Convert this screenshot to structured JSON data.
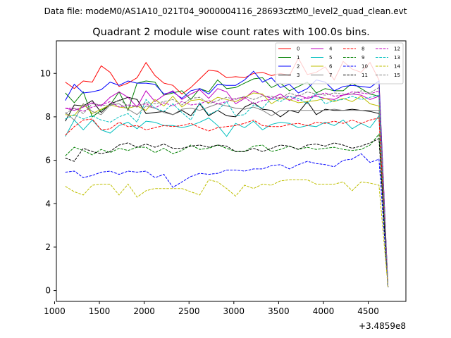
{
  "figure": {
    "suptitle": "Data file: modeM0/AS1A10_021T04_9000004116_28693cztM0_level2_quad_clean.evt"
  },
  "chart_data": {
    "type": "line",
    "title": "Quadrant 2 module wise count rates with 100.0s bins.",
    "xlabel": "",
    "ylabel": "",
    "x_offset_label": "+3.4859e8",
    "xlim": [
      1020,
      4920
    ],
    "ylim": [
      -0.5,
      11.5
    ],
    "xticks": [
      1000,
      1500,
      2000,
      2500,
      3000,
      3500,
      4000,
      4500
    ],
    "yticks": [
      0,
      2,
      4,
      6,
      8,
      10
    ],
    "legend_position": "top-right",
    "x": [
      1120,
      1220,
      1320,
      1420,
      1520,
      1620,
      1720,
      1820,
      1920,
      2020,
      2120,
      2220,
      2320,
      2420,
      2520,
      2620,
      2720,
      2820,
      2920,
      3020,
      3120,
      3220,
      3320,
      3420,
      3520,
      3620,
      3720,
      3820,
      3920,
      4020,
      4120,
      4220,
      4320,
      4420,
      4520,
      4620,
      4720
    ],
    "series": [
      {
        "name": "0",
        "color": "#ff0000",
        "dash": "solid",
        "values": [
          9.6,
          9.3,
          9.65,
          9.6,
          10.35,
          10.05,
          9.4,
          9.55,
          9.8,
          10.5,
          9.9,
          9.55,
          9.45,
          9.05,
          9.35,
          9.75,
          10.15,
          10.1,
          9.8,
          9.85,
          9.8,
          10.0,
          10.05,
          9.9,
          10.0,
          9.9,
          10.7,
          9.95,
          10.05,
          10.3,
          9.7,
          10.55,
          10.2,
          10.05,
          10.5,
          9.7,
          0.15
        ]
      },
      {
        "name": "1",
        "color": "#008000",
        "dash": "solid",
        "values": [
          9.1,
          8.65,
          9.15,
          8.0,
          8.3,
          8.55,
          9.15,
          8.3,
          9.55,
          9.65,
          9.6,
          9.0,
          9.1,
          9.2,
          8.8,
          9.3,
          9.15,
          9.7,
          9.3,
          9.35,
          9.55,
          9.75,
          9.8,
          9.35,
          9.55,
          9.2,
          9.4,
          9.6,
          9.1,
          9.3,
          9.2,
          9.2,
          9.55,
          9.3,
          9.05,
          8.95,
          0.15
        ]
      },
      {
        "name": "2",
        "color": "#0000ff",
        "dash": "solid",
        "values": [
          8.75,
          9.5,
          9.1,
          9.15,
          9.25,
          9.6,
          9.45,
          9.65,
          9.55,
          9.55,
          9.5,
          9.05,
          9.15,
          8.85,
          9.2,
          9.3,
          9.05,
          9.5,
          9.45,
          9.45,
          9.7,
          10.1,
          9.6,
          9.8,
          9.35,
          9.5,
          9.1,
          9.3,
          9.7,
          9.6,
          9.2,
          9.4,
          9.45,
          9.4,
          9.35,
          9.65,
          0.15
        ]
      },
      {
        "name": "3",
        "color": "#000000",
        "dash": "solid",
        "values": [
          7.8,
          8.55,
          8.5,
          8.75,
          8.2,
          8.6,
          8.75,
          8.9,
          8.8,
          8.15,
          8.2,
          8.25,
          8.1,
          8.3,
          8.05,
          8.6,
          8.05,
          8.3,
          8.05,
          8.0,
          8.45,
          8.65,
          8.35,
          8.3,
          8.0,
          8.3,
          8.2,
          8.7,
          8.1,
          8.35,
          8.3,
          8.3,
          8.35,
          8.3,
          8.25,
          8.15,
          0.15
        ]
      },
      {
        "name": "4",
        "color": "#bf00bf",
        "dash": "solid",
        "values": [
          8.4,
          8.3,
          8.45,
          8.65,
          8.5,
          8.9,
          9.15,
          8.9,
          8.45,
          9.2,
          8.7,
          9.0,
          9.2,
          8.8,
          9.05,
          9.25,
          8.85,
          9.3,
          9.15,
          8.6,
          8.85,
          9.2,
          9.0,
          8.85,
          9.05,
          8.75,
          9.0,
          8.85,
          8.95,
          8.85,
          8.8,
          9.0,
          9.05,
          9.0,
          8.8,
          8.95,
          0.15
        ]
      },
      {
        "name": "5",
        "color": "#00bfbf",
        "dash": "solid",
        "values": [
          7.1,
          7.85,
          7.4,
          7.85,
          7.4,
          7.25,
          7.6,
          7.75,
          7.45,
          7.8,
          7.75,
          7.6,
          7.6,
          7.5,
          7.6,
          7.75,
          7.95,
          7.6,
          7.1,
          7.7,
          7.5,
          7.8,
          7.4,
          7.65,
          7.75,
          7.7,
          7.5,
          7.6,
          7.55,
          7.75,
          7.6,
          7.85,
          7.45,
          7.7,
          7.5,
          8.05,
          0.15
        ]
      },
      {
        "name": "6",
        "color": "#bfbf00",
        "dash": "solid",
        "values": [
          8.1,
          8.05,
          8.6,
          8.15,
          8.35,
          8.55,
          8.45,
          8.4,
          8.5,
          8.3,
          8.8,
          8.5,
          8.95,
          8.45,
          8.75,
          8.8,
          8.65,
          8.9,
          8.8,
          8.7,
          8.9,
          9.1,
          9.05,
          8.6,
          8.85,
          8.8,
          8.65,
          8.7,
          8.75,
          8.85,
          8.7,
          8.85,
          8.7,
          8.95,
          8.6,
          8.5,
          0.15
        ]
      },
      {
        "name": "7",
        "color": "#808080",
        "dash": "solid",
        "values": [
          8.2,
          7.85,
          8.6,
          8.25,
          8.1,
          8.55,
          8.6,
          8.35,
          8.1,
          8.5,
          8.4,
          8.2,
          8.1,
          8.35,
          8.4,
          8.3,
          8.45,
          8.6,
          8.5,
          8.4,
          8.35,
          8.45,
          8.3,
          8.05,
          8.3,
          8.3,
          8.3,
          8.3,
          8.3,
          8.3,
          8.35,
          8.3,
          8.3,
          8.3,
          8.3,
          8.3,
          0.15
        ]
      },
      {
        "name": "8",
        "color": "#ff0000",
        "dash": "dashed",
        "values": [
          7.15,
          7.55,
          7.85,
          7.9,
          7.4,
          7.45,
          7.75,
          7.55,
          7.6,
          7.4,
          7.5,
          7.6,
          7.55,
          7.6,
          7.7,
          7.5,
          7.35,
          7.5,
          7.55,
          7.6,
          7.7,
          7.85,
          7.6,
          7.55,
          7.55,
          7.65,
          7.7,
          7.6,
          7.75,
          7.7,
          7.8,
          7.7,
          7.85,
          7.7,
          7.85,
          7.95,
          0.15
        ]
      },
      {
        "name": "9",
        "color": "#008000",
        "dash": "dashed",
        "values": [
          6.2,
          6.6,
          6.45,
          6.25,
          6.5,
          6.35,
          6.55,
          6.45,
          6.6,
          6.6,
          6.35,
          6.55,
          6.3,
          6.45,
          6.7,
          6.5,
          6.55,
          6.7,
          6.55,
          6.4,
          6.4,
          6.65,
          6.7,
          6.4,
          6.5,
          6.65,
          6.5,
          6.6,
          6.5,
          6.55,
          6.6,
          6.5,
          6.45,
          6.5,
          6.7,
          7.2,
          0.15
        ]
      },
      {
        "name": "10",
        "color": "#0000ff",
        "dash": "dashed",
        "values": [
          5.45,
          5.5,
          5.2,
          5.3,
          5.45,
          5.5,
          5.35,
          5.5,
          5.45,
          5.5,
          5.2,
          5.35,
          4.75,
          5.0,
          5.25,
          5.4,
          5.35,
          5.4,
          5.55,
          5.55,
          5.5,
          5.6,
          5.6,
          5.75,
          5.8,
          5.6,
          5.8,
          5.95,
          5.85,
          5.8,
          5.7,
          6.0,
          6.05,
          6.3,
          5.9,
          6.05,
          0.15
        ]
      },
      {
        "name": "11",
        "color": "#000000",
        "dash": "dashed",
        "values": [
          6.1,
          5.95,
          6.55,
          6.4,
          6.3,
          6.4,
          6.7,
          6.8,
          6.6,
          6.75,
          6.6,
          6.75,
          6.55,
          6.55,
          6.65,
          6.7,
          6.6,
          6.7,
          6.65,
          6.4,
          6.4,
          6.55,
          6.4,
          6.55,
          6.7,
          6.65,
          6.5,
          6.7,
          6.75,
          6.65,
          6.8,
          6.7,
          6.55,
          6.65,
          6.8,
          7.0,
          0.15
        ]
      },
      {
        "name": "12",
        "color": "#bf00bf",
        "dash": "dashed",
        "values": [
          8.4,
          8.4,
          8.25,
          8.45,
          8.55,
          8.7,
          8.45,
          8.55,
          8.5,
          8.6,
          8.4,
          8.65,
          8.5,
          8.7,
          8.55,
          8.6,
          8.75,
          8.6,
          8.7,
          8.85,
          8.9,
          8.6,
          8.75,
          8.8,
          8.9,
          8.95,
          8.75,
          8.9,
          9.0,
          9.1,
          8.95,
          9.0,
          9.15,
          9.1,
          9.05,
          9.2,
          0.15
        ]
      },
      {
        "name": "13",
        "color": "#00bfbf",
        "dash": "dashed",
        "values": [
          7.9,
          8.1,
          7.9,
          8.05,
          7.85,
          7.75,
          8.0,
          8.15,
          7.75,
          8.8,
          8.4,
          8.25,
          8.6,
          8.2,
          7.85,
          8.65,
          8.1,
          8.3,
          8.7,
          8.05,
          8.1,
          8.55,
          8.4,
          8.85,
          8.7,
          8.95,
          8.85,
          8.6,
          9.1,
          8.6,
          8.75,
          8.8,
          8.95,
          8.8,
          8.9,
          9.0,
          0.15
        ]
      },
      {
        "name": "14",
        "color": "#bfbf00",
        "dash": "dashed",
        "values": [
          4.8,
          4.55,
          4.4,
          4.85,
          4.9,
          4.9,
          4.4,
          4.9,
          4.3,
          4.6,
          4.7,
          4.7,
          4.7,
          4.7,
          4.55,
          4.4,
          5.1,
          5.0,
          4.7,
          4.35,
          4.85,
          4.7,
          4.9,
          4.85,
          5.05,
          5.1,
          5.1,
          5.1,
          4.9,
          4.9,
          4.9,
          5.0,
          4.6,
          5.0,
          4.95,
          4.85,
          0.15
        ]
      },
      {
        "name": "15",
        "color": "#808080",
        "dash": "dashed",
        "values": [
          8.15,
          8.4,
          8.15,
          8.6,
          8.55,
          8.5,
          8.8,
          8.5,
          8.45,
          8.65,
          8.6,
          8.7,
          8.8,
          8.55,
          8.85,
          8.9,
          8.6,
          8.75,
          8.9,
          8.8,
          8.95,
          8.8,
          8.95,
          8.95,
          8.85,
          9.1,
          8.95,
          9.15,
          9.05,
          9.0,
          9.1,
          9.05,
          9.05,
          9.2,
          9.1,
          9.35,
          0.15
        ]
      }
    ]
  }
}
